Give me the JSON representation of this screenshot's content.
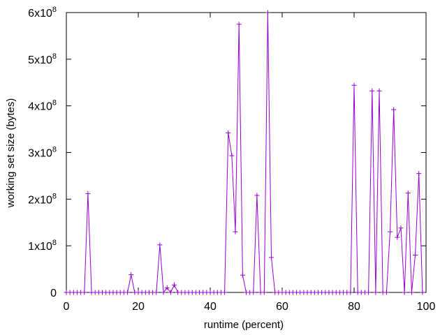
{
  "chart_data": {
    "type": "line",
    "title": "",
    "xlabel": "runtime (percent)",
    "ylabel": "working set size (bytes)",
    "xlim": [
      0,
      100
    ],
    "ylim": [
      0,
      600000000
    ],
    "xticks": [
      0,
      20,
      40,
      60,
      80,
      100
    ],
    "yticks": [
      {
        "value": 0,
        "mantissa": "0",
        "exponent": ""
      },
      {
        "value": 100000000,
        "mantissa": "1x10",
        "exponent": "8"
      },
      {
        "value": 200000000,
        "mantissa": "2x10",
        "exponent": "8"
      },
      {
        "value": 300000000,
        "mantissa": "3x10",
        "exponent": "8"
      },
      {
        "value": 400000000,
        "mantissa": "4x10",
        "exponent": "8"
      },
      {
        "value": 500000000,
        "mantissa": "5x10",
        "exponent": "8"
      },
      {
        "value": 600000000,
        "mantissa": "6x10",
        "exponent": "8"
      }
    ],
    "grid": false,
    "legend": "none",
    "marker": "plus",
    "line_color": "#9400d3",
    "series": [
      {
        "x": [
          0,
          1,
          2,
          3,
          4,
          5,
          6,
          7,
          8,
          9,
          10,
          11,
          12,
          13,
          14,
          15,
          16,
          17,
          18,
          19,
          20,
          21,
          22,
          23,
          24,
          25,
          26,
          27,
          28,
          29,
          30,
          31,
          32,
          33,
          34,
          35,
          36,
          37,
          38,
          39,
          40,
          41,
          42,
          43,
          44,
          45,
          46,
          47,
          48,
          49,
          50,
          51,
          52,
          53,
          54,
          55,
          56,
          57,
          58,
          59,
          60,
          61,
          62,
          63,
          64,
          65,
          66,
          67,
          68,
          69,
          70,
          71,
          72,
          73,
          74,
          75,
          76,
          77,
          78,
          79,
          80,
          81,
          82,
          83,
          84,
          85,
          86,
          87,
          88,
          89,
          90,
          91,
          92,
          93,
          94,
          95,
          96,
          97,
          98,
          99
        ],
        "y": [
          0,
          0,
          0,
          0,
          0,
          0,
          212000000,
          0,
          0,
          0,
          0,
          0,
          0,
          0,
          0,
          0,
          0,
          0,
          38000000,
          0,
          0,
          0,
          0,
          0,
          0,
          0,
          102000000,
          0,
          10000000,
          0,
          16000000,
          0,
          0,
          0,
          0,
          0,
          0,
          0,
          0,
          0,
          0,
          0,
          0,
          0,
          0,
          342000000,
          293000000,
          130000000,
          575000000,
          37000000,
          0,
          0,
          0,
          208000000,
          0,
          0,
          600000000,
          75000000,
          0,
          0,
          0,
          0,
          0,
          0,
          0,
          0,
          0,
          0,
          0,
          0,
          0,
          0,
          0,
          0,
          0,
          0,
          0,
          0,
          0,
          0,
          444000000,
          0,
          0,
          0,
          0,
          432000000,
          0,
          432000000,
          0,
          0,
          130000000,
          392000000,
          118000000,
          138000000,
          0,
          213000000,
          0,
          80000000,
          255000000,
          0
        ]
      }
    ]
  }
}
